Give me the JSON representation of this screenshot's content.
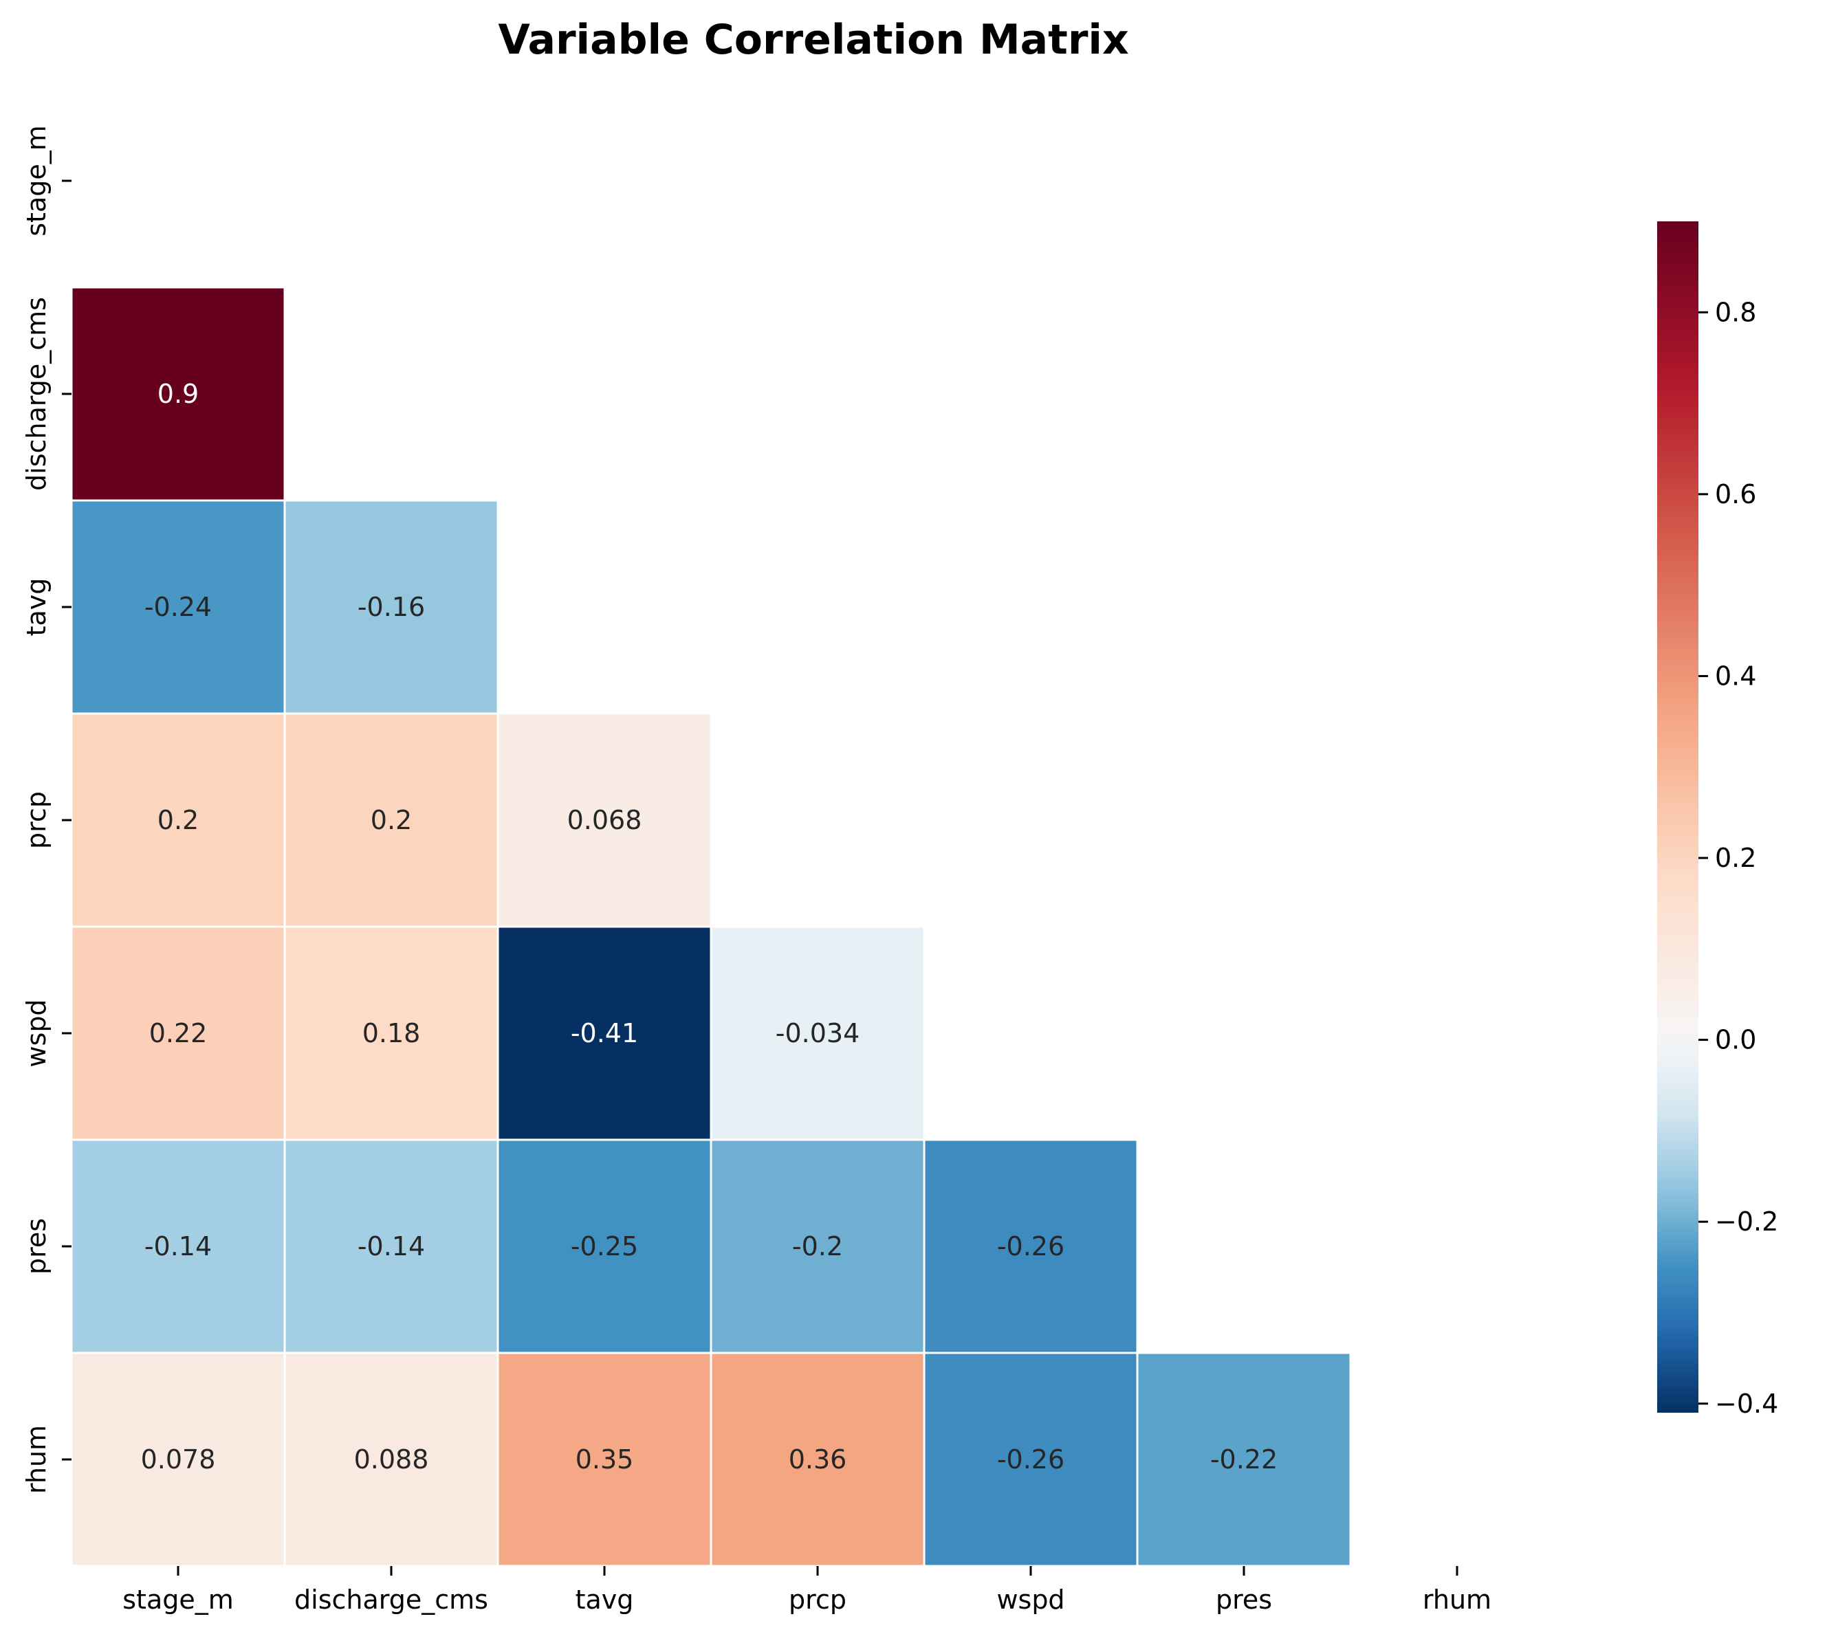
{
  "chart_data": {
    "type": "heatmap",
    "title": "Variable Correlation Matrix",
    "xlabel": "",
    "ylabel": "",
    "variables": [
      "stage_m",
      "discharge_cms",
      "tavg",
      "prcp",
      "wspd",
      "pres",
      "rhum"
    ],
    "mask": "upper triangle including diagonal",
    "cells": [
      {
        "row": "discharge_cms",
        "col": "stage_m",
        "value": 0.9,
        "label": "0.9"
      },
      {
        "row": "tavg",
        "col": "stage_m",
        "value": -0.24,
        "label": "-0.24"
      },
      {
        "row": "tavg",
        "col": "discharge_cms",
        "value": -0.16,
        "label": "-0.16"
      },
      {
        "row": "prcp",
        "col": "stage_m",
        "value": 0.2,
        "label": "0.2"
      },
      {
        "row": "prcp",
        "col": "discharge_cms",
        "value": 0.2,
        "label": "0.2"
      },
      {
        "row": "prcp",
        "col": "tavg",
        "value": 0.068,
        "label": "0.068"
      },
      {
        "row": "wspd",
        "col": "stage_m",
        "value": 0.22,
        "label": "0.22"
      },
      {
        "row": "wspd",
        "col": "discharge_cms",
        "value": 0.18,
        "label": "0.18"
      },
      {
        "row": "wspd",
        "col": "tavg",
        "value": -0.41,
        "label": "-0.41"
      },
      {
        "row": "wspd",
        "col": "prcp",
        "value": -0.034,
        "label": "-0.034"
      },
      {
        "row": "pres",
        "col": "stage_m",
        "value": -0.14,
        "label": "-0.14"
      },
      {
        "row": "pres",
        "col": "discharge_cms",
        "value": -0.14,
        "label": "-0.14"
      },
      {
        "row": "pres",
        "col": "tavg",
        "value": -0.25,
        "label": "-0.25"
      },
      {
        "row": "pres",
        "col": "prcp",
        "value": -0.2,
        "label": "-0.2"
      },
      {
        "row": "pres",
        "col": "wspd",
        "value": -0.26,
        "label": "-0.26"
      },
      {
        "row": "rhum",
        "col": "stage_m",
        "value": 0.078,
        "label": "0.078"
      },
      {
        "row": "rhum",
        "col": "discharge_cms",
        "value": 0.088,
        "label": "0.088"
      },
      {
        "row": "rhum",
        "col": "tavg",
        "value": 0.35,
        "label": "0.35"
      },
      {
        "row": "rhum",
        "col": "prcp",
        "value": 0.36,
        "label": "0.36"
      },
      {
        "row": "rhum",
        "col": "wspd",
        "value": -0.26,
        "label": "-0.26"
      },
      {
        "row": "rhum",
        "col": "pres",
        "value": -0.22,
        "label": "-0.22"
      }
    ],
    "colorbar": {
      "colormap": "RdBu_r",
      "range": [
        -0.41,
        0.9
      ],
      "center": 0.0,
      "ticks": [
        "−0.4",
        "−0.2",
        "0.0",
        "0.2",
        "0.4",
        "0.6",
        "0.8"
      ],
      "placement": "right"
    },
    "grid": false,
    "cell_border_color": "#ffffff"
  }
}
